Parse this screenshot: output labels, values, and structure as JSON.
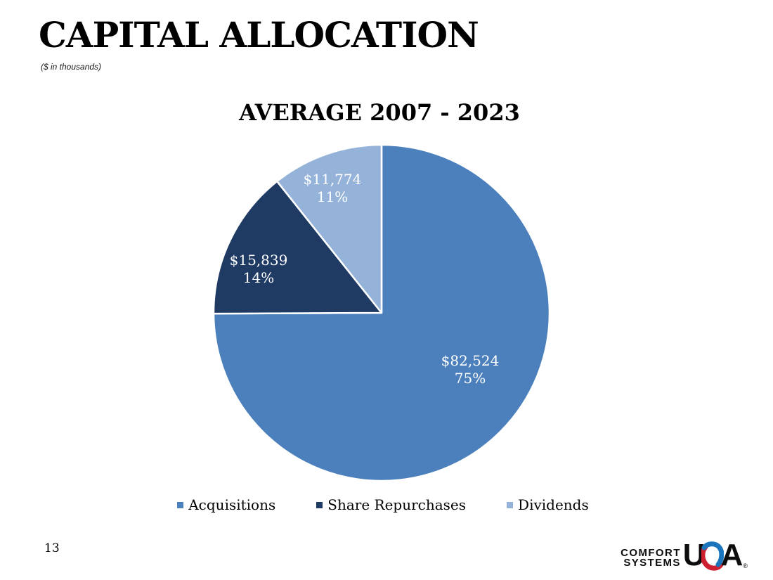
{
  "slide": {
    "title": "CAPITAL ALLOCATION",
    "subtitle": "($ in thousands)",
    "page_number": "13"
  },
  "chart_data": {
    "type": "pie",
    "title": "AVERAGE 2007 - 2023",
    "units": "$ in thousands",
    "legend_position": "bottom",
    "start_angle_deg": 0,
    "direction": "clockwise",
    "slices": [
      {
        "label": "Acquisitions",
        "value": 82524,
        "display_value": "$82,524",
        "display_pct": "75%",
        "color": "#4C80BC"
      },
      {
        "label": "Share Repurchases",
        "value": 15839,
        "display_value": "$15,839",
        "display_pct": "14%",
        "color": "#1F3A63"
      },
      {
        "label": "Dividends",
        "value": 11774,
        "display_value": "$11,774",
        "display_pct": "11%",
        "color": "#95B3D9"
      }
    ],
    "slice_border_color": "#FFFFFF",
    "label_text_color": "#FFFFFF"
  },
  "logo": {
    "line1": "COMFORT",
    "line2": "SYSTEMS",
    "usa_u": "U",
    "usa_a": "A",
    "registered": "®",
    "red_color": "#CE2030",
    "blue_color": "#1B75BC"
  }
}
